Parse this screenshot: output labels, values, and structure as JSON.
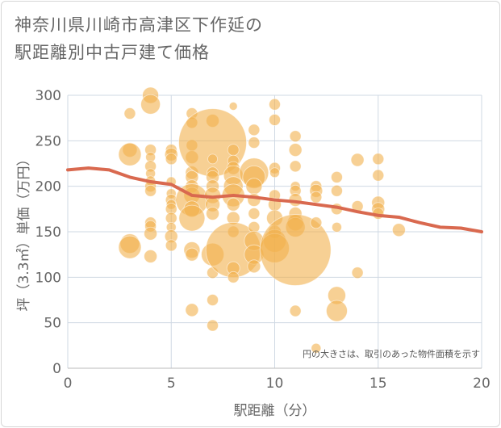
{
  "chart_data": {
    "type": "scatter",
    "title": "神奈川県川崎市高津区下作延の\n駅距離別中古戸建て価格",
    "xlabel": "駅距離（分）",
    "ylabel": "坪（3.3㎡）単価（万円）",
    "annotation": "円の大きさは、取引のあった物件面積を示す",
    "xlim": [
      0,
      20
    ],
    "ylim": [
      0,
      300
    ],
    "xticks": [
      0,
      5,
      10,
      15,
      20
    ],
    "yticks": [
      0,
      50,
      100,
      150,
      200,
      250,
      300
    ],
    "grid": true,
    "colors": {
      "bubble": "#f2b04c",
      "trend": "#d9694f",
      "grid": "#cfd8e3"
    },
    "bubbles": [
      {
        "x": 3,
        "y": 280,
        "size": 7
      },
      {
        "x": 3,
        "y": 240,
        "size": 9
      },
      {
        "x": 3,
        "y": 235,
        "size": 14
      },
      {
        "x": 3,
        "y": 137,
        "size": 12
      },
      {
        "x": 3,
        "y": 133,
        "size": 14
      },
      {
        "x": 4,
        "y": 300,
        "size": 10
      },
      {
        "x": 4,
        "y": 290,
        "size": 12
      },
      {
        "x": 4,
        "y": 240,
        "size": 7
      },
      {
        "x": 4,
        "y": 232,
        "size": 6
      },
      {
        "x": 4,
        "y": 222,
        "size": 7
      },
      {
        "x": 4,
        "y": 214,
        "size": 6
      },
      {
        "x": 4,
        "y": 206,
        "size": 6
      },
      {
        "x": 4,
        "y": 200,
        "size": 7
      },
      {
        "x": 4,
        "y": 195,
        "size": 7
      },
      {
        "x": 4,
        "y": 160,
        "size": 7
      },
      {
        "x": 4,
        "y": 156,
        "size": 7
      },
      {
        "x": 4,
        "y": 148,
        "size": 8
      },
      {
        "x": 4,
        "y": 123,
        "size": 8
      },
      {
        "x": 5,
        "y": 240,
        "size": 7
      },
      {
        "x": 5,
        "y": 235,
        "size": 8
      },
      {
        "x": 5,
        "y": 230,
        "size": 7
      },
      {
        "x": 5,
        "y": 205,
        "size": 6
      },
      {
        "x": 5,
        "y": 192,
        "size": 6
      },
      {
        "x": 5,
        "y": 185,
        "size": 7
      },
      {
        "x": 5,
        "y": 180,
        "size": 6
      },
      {
        "x": 5,
        "y": 175,
        "size": 7
      },
      {
        "x": 5,
        "y": 165,
        "size": 7
      },
      {
        "x": 5,
        "y": 155,
        "size": 6
      },
      {
        "x": 5,
        "y": 145,
        "size": 8
      },
      {
        "x": 5,
        "y": 135,
        "size": 7
      },
      {
        "x": 6,
        "y": 280,
        "size": 7
      },
      {
        "x": 6,
        "y": 270,
        "size": 7
      },
      {
        "x": 6,
        "y": 245,
        "size": 7
      },
      {
        "x": 6,
        "y": 232,
        "size": 8
      },
      {
        "x": 6,
        "y": 215,
        "size": 8
      },
      {
        "x": 6,
        "y": 210,
        "size": 8
      },
      {
        "x": 6,
        "y": 200,
        "size": 8
      },
      {
        "x": 6,
        "y": 190,
        "size": 10
      },
      {
        "x": 6,
        "y": 185,
        "size": 20
      },
      {
        "x": 6,
        "y": 175,
        "size": 10
      },
      {
        "x": 6,
        "y": 165,
        "size": 16
      },
      {
        "x": 6,
        "y": 130,
        "size": 10
      },
      {
        "x": 6,
        "y": 125,
        "size": 8
      },
      {
        "x": 6,
        "y": 64,
        "size": 8
      },
      {
        "x": 7,
        "y": 272,
        "size": 8
      },
      {
        "x": 7,
        "y": 248,
        "size": 42
      },
      {
        "x": 7,
        "y": 230,
        "size": 6
      },
      {
        "x": 7,
        "y": 215,
        "size": 7
      },
      {
        "x": 7,
        "y": 210,
        "size": 8
      },
      {
        "x": 7,
        "y": 200,
        "size": 8
      },
      {
        "x": 7,
        "y": 190,
        "size": 10
      },
      {
        "x": 7,
        "y": 180,
        "size": 9
      },
      {
        "x": 7,
        "y": 170,
        "size": 8
      },
      {
        "x": 7,
        "y": 125,
        "size": 14
      },
      {
        "x": 7,
        "y": 105,
        "size": 7
      },
      {
        "x": 7,
        "y": 75,
        "size": 7
      },
      {
        "x": 7,
        "y": 47,
        "size": 7
      },
      {
        "x": 8,
        "y": 288,
        "size": 5
      },
      {
        "x": 8,
        "y": 240,
        "size": 7
      },
      {
        "x": 8,
        "y": 228,
        "size": 7
      },
      {
        "x": 8,
        "y": 220,
        "size": 8
      },
      {
        "x": 8,
        "y": 212,
        "size": 12
      },
      {
        "x": 8,
        "y": 200,
        "size": 12
      },
      {
        "x": 8,
        "y": 190,
        "size": 14
      },
      {
        "x": 8,
        "y": 180,
        "size": 8
      },
      {
        "x": 8,
        "y": 165,
        "size": 8
      },
      {
        "x": 8,
        "y": 150,
        "size": 7
      },
      {
        "x": 8,
        "y": 130,
        "size": 34
      },
      {
        "x": 8,
        "y": 110,
        "size": 8
      },
      {
        "x": 8,
        "y": 100,
        "size": 7
      },
      {
        "x": 9,
        "y": 262,
        "size": 7
      },
      {
        "x": 9,
        "y": 248,
        "size": 7
      },
      {
        "x": 9,
        "y": 215,
        "size": 18
      },
      {
        "x": 9,
        "y": 210,
        "size": 14
      },
      {
        "x": 9,
        "y": 200,
        "size": 10
      },
      {
        "x": 9,
        "y": 185,
        "size": 8
      },
      {
        "x": 9,
        "y": 170,
        "size": 7
      },
      {
        "x": 9,
        "y": 155,
        "size": 7
      },
      {
        "x": 9,
        "y": 140,
        "size": 12
      },
      {
        "x": 9,
        "y": 125,
        "size": 12
      },
      {
        "x": 9,
        "y": 112,
        "size": 8
      },
      {
        "x": 10,
        "y": 290,
        "size": 7
      },
      {
        "x": 10,
        "y": 273,
        "size": 7
      },
      {
        "x": 10,
        "y": 220,
        "size": 7
      },
      {
        "x": 10,
        "y": 215,
        "size": 6
      },
      {
        "x": 10,
        "y": 190,
        "size": 7
      },
      {
        "x": 10,
        "y": 180,
        "size": 8
      },
      {
        "x": 10,
        "y": 165,
        "size": 10
      },
      {
        "x": 10,
        "y": 150,
        "size": 8
      },
      {
        "x": 10,
        "y": 140,
        "size": 14
      },
      {
        "x": 10,
        "y": 132,
        "size": 18
      },
      {
        "x": 11,
        "y": 255,
        "size": 7
      },
      {
        "x": 11,
        "y": 240,
        "size": 8
      },
      {
        "x": 11,
        "y": 222,
        "size": 7
      },
      {
        "x": 11,
        "y": 200,
        "size": 6
      },
      {
        "x": 11,
        "y": 195,
        "size": 7
      },
      {
        "x": 11,
        "y": 185,
        "size": 8
      },
      {
        "x": 11,
        "y": 170,
        "size": 8
      },
      {
        "x": 11,
        "y": 160,
        "size": 10
      },
      {
        "x": 11,
        "y": 155,
        "size": 12
      },
      {
        "x": 11,
        "y": 130,
        "size": 44
      },
      {
        "x": 11,
        "y": 63,
        "size": 7
      },
      {
        "x": 12,
        "y": 200,
        "size": 7
      },
      {
        "x": 12,
        "y": 195,
        "size": 8
      },
      {
        "x": 12,
        "y": 188,
        "size": 7
      },
      {
        "x": 12,
        "y": 160,
        "size": 7
      },
      {
        "x": 12,
        "y": 22,
        "size": 6
      },
      {
        "x": 13,
        "y": 210,
        "size": 7
      },
      {
        "x": 13,
        "y": 195,
        "size": 7
      },
      {
        "x": 13,
        "y": 175,
        "size": 7
      },
      {
        "x": 13,
        "y": 155,
        "size": 6
      },
      {
        "x": 13,
        "y": 80,
        "size": 11
      },
      {
        "x": 13,
        "y": 63,
        "size": 13
      },
      {
        "x": 14,
        "y": 229,
        "size": 8
      },
      {
        "x": 14,
        "y": 178,
        "size": 7
      },
      {
        "x": 14,
        "y": 105,
        "size": 7
      },
      {
        "x": 15,
        "y": 230,
        "size": 7
      },
      {
        "x": 15,
        "y": 212,
        "size": 7
      },
      {
        "x": 15,
        "y": 182,
        "size": 8
      },
      {
        "x": 15,
        "y": 175,
        "size": 8
      },
      {
        "x": 15,
        "y": 170,
        "size": 7
      },
      {
        "x": 16,
        "y": 152,
        "size": 8
      }
    ],
    "trend": {
      "x": [
        0,
        1,
        2,
        3,
        4,
        5,
        6,
        7,
        8,
        9,
        10,
        11,
        12,
        13,
        14,
        15,
        16,
        17,
        18,
        19,
        20
      ],
      "y": [
        218,
        220,
        218,
        210,
        205,
        202,
        190,
        188,
        190,
        188,
        185,
        183,
        180,
        177,
        172,
        168,
        166,
        160,
        155,
        154,
        150
      ]
    }
  }
}
